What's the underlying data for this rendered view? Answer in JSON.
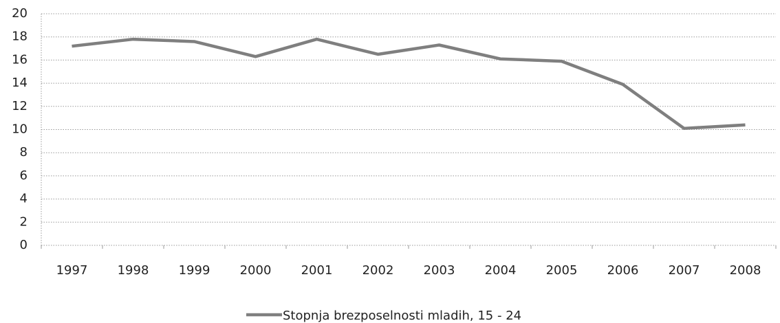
{
  "chart_data": {
    "type": "line",
    "categories": [
      "1997",
      "1998",
      "1999",
      "2000",
      "2001",
      "2002",
      "2003",
      "2004",
      "2005",
      "2006",
      "2007",
      "2008"
    ],
    "series": [
      {
        "name": "Stopnja brezposelnosti mladih, 15 - 24",
        "color": "#7f7f7f",
        "values": [
          17.2,
          17.8,
          17.6,
          16.3,
          17.8,
          16.5,
          17.3,
          16.1,
          15.9,
          13.9,
          10.1,
          10.4
        ]
      }
    ],
    "ylim": [
      0,
      20
    ],
    "yticks": [
      0,
      2,
      4,
      6,
      8,
      10,
      12,
      14,
      16,
      18,
      20
    ],
    "grid": true,
    "legend": "bottom"
  }
}
